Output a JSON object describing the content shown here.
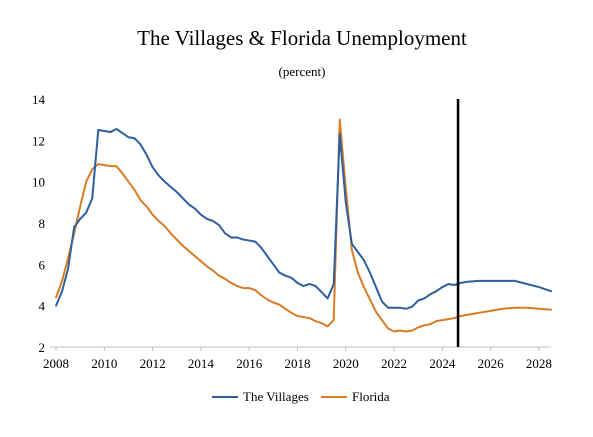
{
  "chart_data": {
    "type": "line",
    "title": "The Villages & Florida Unemployment",
    "subtitle": "(percent)",
    "xlabel": "",
    "ylabel": "",
    "xlim": [
      2007.75,
      2028.5
    ],
    "ylim": [
      2,
      14
    ],
    "x_ticks": [
      2008,
      2010,
      2012,
      2014,
      2016,
      2018,
      2020,
      2022,
      2024,
      2026,
      2028
    ],
    "y_ticks": [
      2,
      4,
      6,
      8,
      10,
      12,
      14
    ],
    "grid": false,
    "legend_position": "bottom",
    "forecast_marker_x": 2024.65,
    "series": [
      {
        "name": "The Villages",
        "color": "#2e5f9e",
        "points": [
          [
            2008.0,
            4.0
          ],
          [
            2008.25,
            4.7
          ],
          [
            2008.5,
            5.8
          ],
          [
            2008.75,
            7.8
          ],
          [
            2009.0,
            8.2
          ],
          [
            2009.25,
            8.5
          ],
          [
            2009.5,
            9.2
          ],
          [
            2009.75,
            12.5
          ],
          [
            2010.0,
            12.45
          ],
          [
            2010.25,
            12.4
          ],
          [
            2010.5,
            12.55
          ],
          [
            2010.75,
            12.35
          ],
          [
            2011.0,
            12.15
          ],
          [
            2011.25,
            12.1
          ],
          [
            2011.5,
            11.8
          ],
          [
            2011.75,
            11.3
          ],
          [
            2012.0,
            10.7
          ],
          [
            2012.25,
            10.3
          ],
          [
            2012.5,
            10.0
          ],
          [
            2012.75,
            9.75
          ],
          [
            2013.0,
            9.5
          ],
          [
            2013.25,
            9.2
          ],
          [
            2013.5,
            8.9
          ],
          [
            2013.75,
            8.7
          ],
          [
            2014.0,
            8.4
          ],
          [
            2014.25,
            8.2
          ],
          [
            2014.5,
            8.1
          ],
          [
            2014.75,
            7.9
          ],
          [
            2015.0,
            7.5
          ],
          [
            2015.25,
            7.3
          ],
          [
            2015.5,
            7.3
          ],
          [
            2015.75,
            7.2
          ],
          [
            2016.0,
            7.15
          ],
          [
            2016.25,
            7.1
          ],
          [
            2016.5,
            6.8
          ],
          [
            2016.75,
            6.4
          ],
          [
            2017.0,
            6.0
          ],
          [
            2017.25,
            5.6
          ],
          [
            2017.5,
            5.45
          ],
          [
            2017.75,
            5.35
          ],
          [
            2018.0,
            5.1
          ],
          [
            2018.25,
            4.95
          ],
          [
            2018.5,
            5.05
          ],
          [
            2018.75,
            4.95
          ],
          [
            2019.0,
            4.65
          ],
          [
            2019.25,
            4.35
          ],
          [
            2019.5,
            5.05
          ],
          [
            2019.75,
            12.3
          ],
          [
            2020.0,
            9.0
          ],
          [
            2020.25,
            7.0
          ],
          [
            2020.5,
            6.6
          ],
          [
            2020.75,
            6.2
          ],
          [
            2021.0,
            5.6
          ],
          [
            2021.25,
            4.9
          ],
          [
            2021.5,
            4.2
          ],
          [
            2021.75,
            3.9
          ],
          [
            2022.0,
            3.9
          ],
          [
            2022.25,
            3.9
          ],
          [
            2022.5,
            3.85
          ],
          [
            2022.75,
            3.95
          ],
          [
            2023.0,
            4.25
          ],
          [
            2023.25,
            4.35
          ],
          [
            2023.5,
            4.55
          ],
          [
            2023.75,
            4.7
          ],
          [
            2024.0,
            4.9
          ],
          [
            2024.25,
            5.05
          ],
          [
            2024.5,
            5.0
          ],
          [
            2024.75,
            5.1
          ],
          [
            2025.0,
            5.15
          ],
          [
            2025.5,
            5.2
          ],
          [
            2026.0,
            5.2
          ],
          [
            2026.5,
            5.2
          ],
          [
            2027.0,
            5.2
          ],
          [
            2027.5,
            5.05
          ],
          [
            2028.0,
            4.9
          ],
          [
            2028.5,
            4.7
          ]
        ]
      },
      {
        "name": "Florida",
        "color": "#d97b27",
        "points": [
          [
            2008.0,
            4.4
          ],
          [
            2008.25,
            5.2
          ],
          [
            2008.5,
            6.3
          ],
          [
            2008.75,
            7.5
          ],
          [
            2009.0,
            8.8
          ],
          [
            2009.25,
            10.0
          ],
          [
            2009.5,
            10.6
          ],
          [
            2009.75,
            10.85
          ],
          [
            2010.0,
            10.8
          ],
          [
            2010.25,
            10.75
          ],
          [
            2010.5,
            10.75
          ],
          [
            2010.75,
            10.4
          ],
          [
            2011.0,
            10.0
          ],
          [
            2011.25,
            9.6
          ],
          [
            2011.5,
            9.1
          ],
          [
            2011.75,
            8.8
          ],
          [
            2012.0,
            8.4
          ],
          [
            2012.25,
            8.1
          ],
          [
            2012.5,
            7.85
          ],
          [
            2012.75,
            7.5
          ],
          [
            2013.0,
            7.2
          ],
          [
            2013.25,
            6.9
          ],
          [
            2013.5,
            6.65
          ],
          [
            2013.75,
            6.4
          ],
          [
            2014.0,
            6.15
          ],
          [
            2014.25,
            5.9
          ],
          [
            2014.5,
            5.7
          ],
          [
            2014.75,
            5.45
          ],
          [
            2015.0,
            5.3
          ],
          [
            2015.25,
            5.1
          ],
          [
            2015.5,
            4.95
          ],
          [
            2015.75,
            4.85
          ],
          [
            2016.0,
            4.85
          ],
          [
            2016.25,
            4.75
          ],
          [
            2016.5,
            4.5
          ],
          [
            2016.75,
            4.3
          ],
          [
            2017.0,
            4.15
          ],
          [
            2017.25,
            4.05
          ],
          [
            2017.5,
            3.85
          ],
          [
            2017.75,
            3.65
          ],
          [
            2018.0,
            3.5
          ],
          [
            2018.25,
            3.45
          ],
          [
            2018.5,
            3.4
          ],
          [
            2018.75,
            3.25
          ],
          [
            2019.0,
            3.15
          ],
          [
            2019.25,
            3.0
          ],
          [
            2019.5,
            3.3
          ],
          [
            2019.75,
            13.0
          ],
          [
            2020.0,
            9.7
          ],
          [
            2020.25,
            6.7
          ],
          [
            2020.5,
            5.6
          ],
          [
            2020.75,
            4.9
          ],
          [
            2021.0,
            4.3
          ],
          [
            2021.25,
            3.7
          ],
          [
            2021.5,
            3.3
          ],
          [
            2021.75,
            2.9
          ],
          [
            2022.0,
            2.75
          ],
          [
            2022.25,
            2.8
          ],
          [
            2022.5,
            2.75
          ],
          [
            2022.75,
            2.8
          ],
          [
            2023.0,
            2.95
          ],
          [
            2023.25,
            3.05
          ],
          [
            2023.5,
            3.1
          ],
          [
            2023.75,
            3.25
          ],
          [
            2024.0,
            3.3
          ],
          [
            2024.25,
            3.35
          ],
          [
            2024.5,
            3.4
          ],
          [
            2024.75,
            3.5
          ],
          [
            2025.0,
            3.55
          ],
          [
            2025.5,
            3.65
          ],
          [
            2026.0,
            3.75
          ],
          [
            2026.5,
            3.85
          ],
          [
            2027.0,
            3.9
          ],
          [
            2027.5,
            3.9
          ],
          [
            2028.0,
            3.85
          ],
          [
            2028.5,
            3.8
          ]
        ]
      }
    ]
  }
}
